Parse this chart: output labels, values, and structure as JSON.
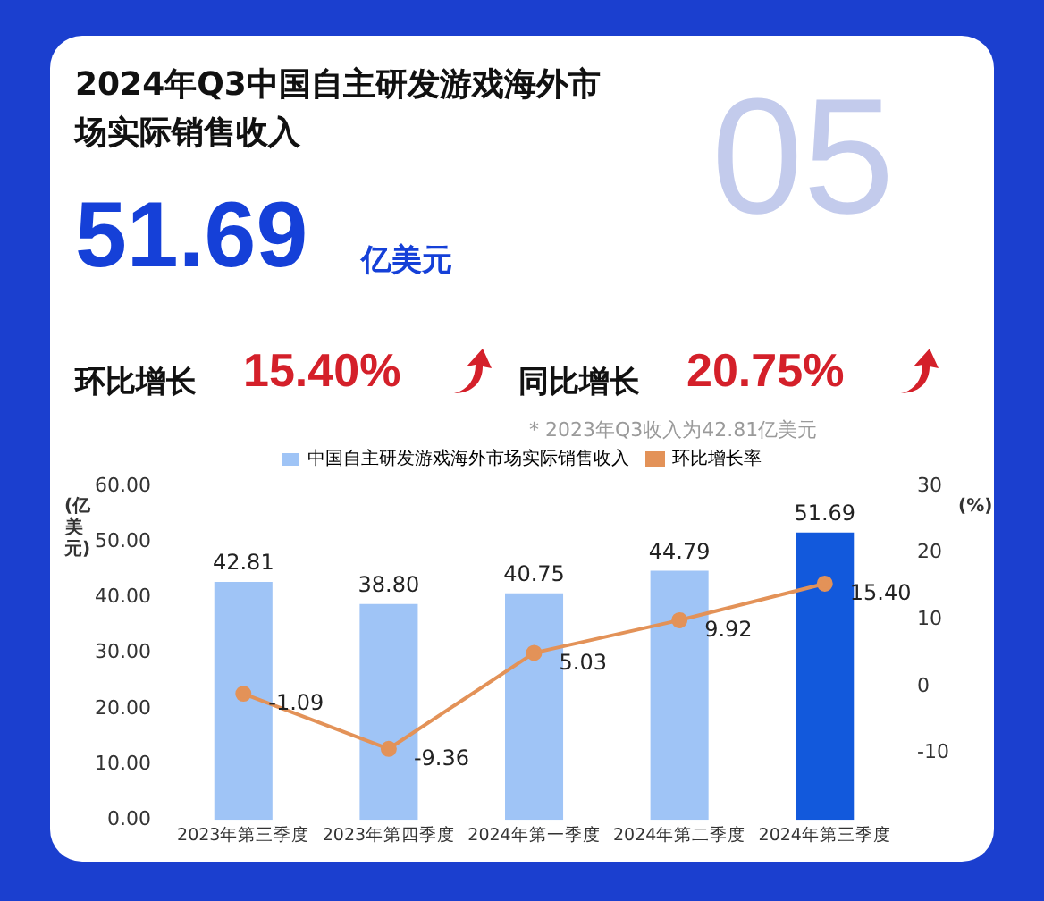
{
  "chart_data": {
    "type": "bar",
    "title": "2024年Q3中国自主研发游戏海外市场实际销售收入",
    "annotations": [
      "51.69",
      "亿美元",
      "环比增长",
      "15.40%",
      "同比增长",
      "20.75%",
      "* 2023年Q3收入为42.81亿美元",
      "05"
    ],
    "ylabel": "(亿美元)",
    "y2label": "(%)",
    "categories": [
      "2023年第三季度",
      "2023年第四季度",
      "2024年第一季度",
      "2024年第二季度",
      "2024年第三季度"
    ],
    "series": [
      {
        "name": "中国自主研发游戏海外市场实际销售收入",
        "color": "#9fc4f6",
        "colors": [
          "#9fc4f6",
          "#9fc4f6",
          "#9fc4f6",
          "#9fc4f6",
          "#1259dc"
        ],
        "values": [
          42.81,
          38.8,
          40.75,
          44.79,
          51.69
        ],
        "value_labels": [
          "42.81",
          "38.80",
          "40.75",
          "44.79",
          "51.69"
        ]
      },
      {
        "name": "环比增长率",
        "type": "line",
        "axis": "y2",
        "color": "#e39258",
        "values": [
          -1.09,
          -9.36,
          5.03,
          9.92,
          15.4
        ],
        "value_labels": [
          "-1.09",
          "-9.36",
          "5.03",
          "9.92",
          "15.40"
        ]
      }
    ],
    "ylim": [
      0,
      60
    ],
    "yticks": [
      {
        "value": 0,
        "label": "0.00"
      },
      {
        "value": 10,
        "label": "10.00"
      },
      {
        "value": 20,
        "label": "20.00"
      },
      {
        "value": 30,
        "label": "30.00"
      },
      {
        "value": 40,
        "label": "40.00"
      },
      {
        "value": 50,
        "label": "50.00"
      },
      {
        "value": 60,
        "label": "60.00"
      }
    ],
    "y2lim": [
      -20,
      30
    ],
    "y2ticks": [
      -10,
      0,
      10,
      20,
      30
    ],
    "grid": false,
    "legend": "top",
    "marker": "circle",
    "line_style": "solid"
  }
}
